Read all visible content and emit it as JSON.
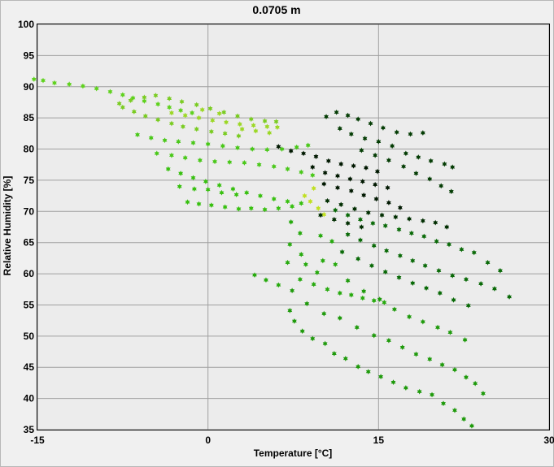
{
  "chart_data": {
    "type": "scatter",
    "title": "0.0705 m",
    "xlabel": "Temperature [°C]",
    "ylabel": "Relative Humidity [%]",
    "xlim": [
      -15,
      30
    ],
    "ylim": [
      35,
      100
    ],
    "xticks": [
      -15,
      0,
      15,
      30
    ],
    "yticks": [
      35,
      40,
      45,
      50,
      55,
      60,
      65,
      70,
      75,
      80,
      85,
      90,
      95,
      100
    ],
    "grid": true,
    "legend": "none",
    "marker": "star",
    "clusters": [
      {
        "color": "#5fd21e",
        "points": [
          [
            -15.3,
            91.2
          ],
          [
            -14.5,
            91
          ],
          [
            -13.5,
            90.6
          ],
          [
            -12.2,
            90.4
          ],
          [
            -11,
            90.1
          ],
          [
            -9.8,
            89.7
          ],
          [
            -8.6,
            89.2
          ],
          [
            -7.5,
            88.7
          ],
          [
            -6.6,
            88.2
          ],
          [
            -5.6,
            87.7
          ],
          [
            -4.4,
            87.2
          ],
          [
            -3.4,
            86.7
          ],
          [
            -2.4,
            86.2
          ],
          [
            -1.4,
            85.8
          ]
        ]
      },
      {
        "color": "#7acc22",
        "points": [
          [
            -7.5,
            86.7
          ],
          [
            -6.5,
            86
          ],
          [
            -5.5,
            85.3
          ],
          [
            -4.4,
            84.7
          ],
          [
            -3.2,
            84.1
          ],
          [
            -2.2,
            83.6
          ],
          [
            -1,
            83.2
          ],
          [
            0.3,
            82.8
          ],
          [
            1.5,
            82.5
          ],
          [
            2.7,
            82.1
          ],
          [
            -7.8,
            87.3
          ],
          [
            -6.8,
            87.8
          ],
          [
            -5.6,
            88.3
          ],
          [
            -4.6,
            88.6
          ],
          [
            -3.4,
            88.1
          ],
          [
            -2.3,
            87.6
          ],
          [
            -1,
            87.1
          ],
          [
            0.2,
            86.5
          ],
          [
            1.4,
            85.9
          ],
          [
            2.6,
            85.3
          ],
          [
            3.8,
            84.8
          ],
          [
            5,
            84.5
          ],
          [
            6,
            84.4
          ]
        ]
      },
      {
        "color": "#9cd826",
        "points": [
          [
            -3.2,
            85.8
          ],
          [
            -2,
            85.4
          ],
          [
            -0.8,
            85
          ],
          [
            0.4,
            84.6
          ],
          [
            1.6,
            84.3
          ],
          [
            2.8,
            84
          ],
          [
            4,
            83.8
          ],
          [
            5.2,
            83.6
          ],
          [
            6.1,
            83.5
          ],
          [
            3,
            83.2
          ],
          [
            4.2,
            82.9
          ],
          [
            5.4,
            82.6
          ],
          [
            -0.5,
            86.3
          ],
          [
            1,
            85.7
          ]
        ]
      },
      {
        "color": "#4ac81a",
        "points": [
          [
            -6.2,
            82.3
          ],
          [
            -5,
            81.8
          ],
          [
            -3.8,
            81.4
          ],
          [
            -2.6,
            81.2
          ],
          [
            -1.3,
            81
          ],
          [
            0,
            80.8
          ],
          [
            1.3,
            80.5
          ],
          [
            2.6,
            80.2
          ],
          [
            3.9,
            80
          ],
          [
            5.2,
            79.9
          ],
          [
            6.5,
            80
          ],
          [
            7.8,
            80.3
          ],
          [
            8.8,
            80.6
          ],
          [
            -4.5,
            79.3
          ],
          [
            -3.2,
            79
          ],
          [
            -2,
            78.6
          ],
          [
            -0.7,
            78.2
          ],
          [
            0.6,
            78
          ],
          [
            1.9,
            77.9
          ],
          [
            3.2,
            77.8
          ],
          [
            4.5,
            77.5
          ],
          [
            5.8,
            77.2
          ],
          [
            7,
            76.8
          ],
          [
            8.2,
            76.3
          ],
          [
            9.2,
            75.8
          ]
        ]
      },
      {
        "color": "#38c010",
        "points": [
          [
            -3.5,
            76.8
          ],
          [
            -2.4,
            76.1
          ],
          [
            -1.3,
            75.4
          ],
          [
            -0.2,
            74.8
          ],
          [
            1,
            74.2
          ],
          [
            2.2,
            73.6
          ],
          [
            3.4,
            73
          ],
          [
            4.6,
            72.5
          ],
          [
            5.8,
            72
          ],
          [
            7,
            71.6
          ],
          [
            8.2,
            71.3
          ],
          [
            -1.8,
            71.5
          ],
          [
            -0.8,
            71.2
          ],
          [
            0.3,
            71
          ],
          [
            1.5,
            70.7
          ],
          [
            2.7,
            70.4
          ],
          [
            0,
            73.5
          ],
          [
            1.2,
            73
          ],
          [
            2.5,
            72.7
          ],
          [
            -2.5,
            74
          ],
          [
            -1.2,
            73.6
          ],
          [
            3.8,
            70.5
          ],
          [
            5,
            70.3
          ],
          [
            6.2,
            70.5
          ],
          [
            7.4,
            70.8
          ]
        ]
      },
      {
        "color": "#c0e020",
        "points": [
          [
            9,
            71.6
          ],
          [
            9.7,
            70.5
          ],
          [
            8.5,
            72.5
          ],
          [
            10.2,
            69.5
          ],
          [
            9.3,
            73.7
          ]
        ]
      },
      {
        "color": "#27aa0e",
        "points": [
          [
            7.3,
            68.3
          ],
          [
            8.1,
            66.5
          ],
          [
            7.2,
            64.7
          ],
          [
            8.2,
            63.1
          ],
          [
            7,
            61.8
          ],
          [
            8.6,
            61.5
          ],
          [
            9.6,
            60.2
          ],
          [
            8.1,
            59.1
          ],
          [
            9.3,
            58.3
          ],
          [
            10.5,
            57.5
          ],
          [
            11.6,
            56.9
          ],
          [
            12.6,
            56.6
          ],
          [
            13.6,
            56.1
          ],
          [
            14.6,
            55.7
          ],
          [
            15.5,
            55.4
          ],
          [
            4.1,
            59.8
          ],
          [
            5.1,
            59
          ],
          [
            6.2,
            58.2
          ],
          [
            10.1,
            62.1
          ],
          [
            11.2,
            61.5
          ],
          [
            9.9,
            66.1
          ],
          [
            10.9,
            65.2
          ]
        ]
      },
      {
        "color": "#1f9a0c",
        "points": [
          [
            7.2,
            54.1
          ],
          [
            7.6,
            52.4
          ],
          [
            8.3,
            50.8
          ],
          [
            9.2,
            49.6
          ],
          [
            10.3,
            48.8
          ],
          [
            11.1,
            47.2
          ],
          [
            12.1,
            46.4
          ],
          [
            13.2,
            45.1
          ],
          [
            14.1,
            44.3
          ],
          [
            15.2,
            43.5
          ],
          [
            16.3,
            42.6
          ],
          [
            17.4,
            41.7
          ],
          [
            18.6,
            41.1
          ],
          [
            19.7,
            40.6
          ],
          [
            20.7,
            39.2
          ],
          [
            21.7,
            38.1
          ],
          [
            22.5,
            36.7
          ],
          [
            23.2,
            35.6
          ],
          [
            7.4,
            57.3
          ],
          [
            8.7,
            55.2
          ],
          [
            10.2,
            53.6
          ],
          [
            11.6,
            52.9
          ],
          [
            13.1,
            51.4
          ],
          [
            14.6,
            50.1
          ],
          [
            15.9,
            49.3
          ],
          [
            17.1,
            48.2
          ],
          [
            18.3,
            47.1
          ],
          [
            19.5,
            46.3
          ],
          [
            20.6,
            45.4
          ],
          [
            21.7,
            44.6
          ],
          [
            22.7,
            43.4
          ],
          [
            23.5,
            42.4
          ],
          [
            24.2,
            40.8
          ],
          [
            12.3,
            58.9
          ],
          [
            13.7,
            57.2
          ],
          [
            15.1,
            55.9
          ],
          [
            16.4,
            54.3
          ],
          [
            17.7,
            53.1
          ],
          [
            18.9,
            52.3
          ],
          [
            20.2,
            51.4
          ],
          [
            21.3,
            50.6
          ],
          [
            22.6,
            49.4
          ]
        ]
      },
      {
        "color": "#0a6a08",
        "points": [
          [
            11.2,
            70.2
          ],
          [
            12.3,
            69.4
          ],
          [
            13.4,
            68.7
          ],
          [
            14.5,
            68.1
          ],
          [
            15.6,
            67.7
          ],
          [
            16.8,
            67.1
          ],
          [
            17.9,
            66.5
          ],
          [
            19,
            66
          ],
          [
            20.1,
            65.2
          ],
          [
            21.2,
            64.7
          ],
          [
            22.3,
            63.9
          ],
          [
            23.4,
            63.4
          ],
          [
            12.3,
            66.3
          ],
          [
            13.4,
            65.4
          ],
          [
            14.6,
            64.5
          ],
          [
            15.7,
            63.7
          ],
          [
            16.9,
            62.9
          ],
          [
            18,
            62.1
          ],
          [
            19.1,
            61.3
          ],
          [
            20.3,
            60.5
          ],
          [
            21.5,
            59.7
          ],
          [
            22.7,
            59.1
          ],
          [
            24,
            58.4
          ],
          [
            25.2,
            57.6
          ],
          [
            26.5,
            56.3
          ],
          [
            13.2,
            62.4
          ],
          [
            14.4,
            61.3
          ],
          [
            15.6,
            60.3
          ],
          [
            16.8,
            59.4
          ],
          [
            18,
            58.5
          ],
          [
            19.2,
            57.7
          ],
          [
            20.4,
            56.9
          ],
          [
            21.6,
            55.8
          ],
          [
            22.9,
            54.9
          ],
          [
            11.8,
            63.5
          ],
          [
            25.7,
            60.5
          ],
          [
            24.6,
            61.8
          ]
        ]
      },
      {
        "color": "#053d05",
        "points": [
          [
            10.4,
            85.2
          ],
          [
            11.3,
            85.9
          ],
          [
            12.3,
            85.4
          ],
          [
            13.2,
            84.8
          ],
          [
            14.3,
            84.1
          ],
          [
            15.4,
            83.4
          ],
          [
            16.6,
            82.7
          ],
          [
            17.8,
            82.4
          ],
          [
            18.9,
            82.6
          ],
          [
            11.6,
            83.3
          ],
          [
            12.6,
            82.4
          ],
          [
            13.8,
            81.7
          ],
          [
            15,
            81.2
          ],
          [
            16.2,
            80.5
          ],
          [
            17.4,
            79.3
          ],
          [
            18.5,
            78.7
          ],
          [
            19.6,
            78.1
          ],
          [
            20.8,
            77.6
          ],
          [
            21.5,
            77.1
          ],
          [
            13.5,
            79.8
          ],
          [
            14.7,
            79
          ],
          [
            15.9,
            78.2
          ],
          [
            17.2,
            77.2
          ],
          [
            18.3,
            76.1
          ],
          [
            19.5,
            75.2
          ],
          [
            20.5,
            74.1
          ],
          [
            21.4,
            73.2
          ]
        ]
      },
      {
        "color": "#011901",
        "points": [
          [
            6.2,
            80.4
          ],
          [
            7.3,
            79.7
          ],
          [
            8.4,
            79.3
          ],
          [
            9.5,
            78.8
          ],
          [
            10.6,
            78.1
          ],
          [
            11.7,
            77.6
          ],
          [
            12.8,
            77.3
          ],
          [
            13.9,
            77
          ],
          [
            14.9,
            76.4
          ],
          [
            9.2,
            77.1
          ],
          [
            10.3,
            76.2
          ],
          [
            11.4,
            75.7
          ],
          [
            12.5,
            75.2
          ],
          [
            13.6,
            74.8
          ],
          [
            14.7,
            74.3
          ],
          [
            15.8,
            73.8
          ],
          [
            10.2,
            74.4
          ],
          [
            11.4,
            73.8
          ],
          [
            12.6,
            73.3
          ],
          [
            13.7,
            72.6
          ],
          [
            14.8,
            72
          ],
          [
            15.9,
            71.4
          ],
          [
            16.9,
            70.6
          ]
        ]
      },
      {
        "color": "#012e01",
        "points": [
          [
            10.5,
            71.7
          ],
          [
            11.7,
            71.1
          ],
          [
            12.9,
            70.4
          ],
          [
            14.1,
            69.8
          ],
          [
            15.3,
            69.4
          ],
          [
            16.5,
            69.1
          ],
          [
            17.7,
            68.8
          ],
          [
            18.9,
            68.5
          ],
          [
            20,
            68.2
          ],
          [
            21,
            67.5
          ],
          [
            9.9,
            69.4
          ],
          [
            11.1,
            68.7
          ],
          [
            12.3,
            68.1
          ],
          [
            13.5,
            67.5
          ]
        ]
      }
    ]
  }
}
